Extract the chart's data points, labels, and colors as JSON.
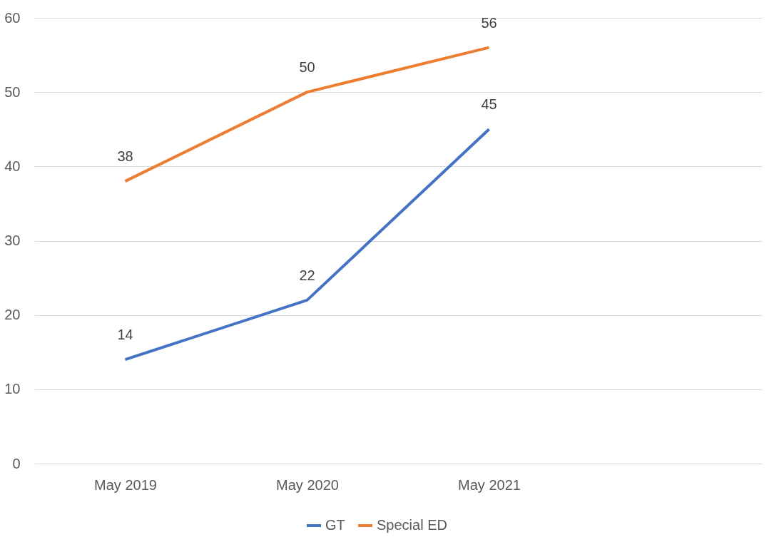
{
  "chart_data": {
    "type": "line",
    "categories": [
      "May 2019",
      "May 2020",
      "May 2021",
      null
    ],
    "series": [
      {
        "name": "GT",
        "color": "#4472c4",
        "values": [
          14,
          22,
          45,
          null
        ]
      },
      {
        "name": "Special ED",
        "color": "#ed7d31",
        "values": [
          38,
          50,
          56,
          null
        ]
      }
    ],
    "ylim": [
      0,
      60
    ],
    "yticks": [
      0,
      10,
      20,
      30,
      40,
      50,
      60
    ],
    "grid": "y",
    "legend": "bottom",
    "data_labels": true,
    "marker": "none",
    "line_style": "solid"
  }
}
